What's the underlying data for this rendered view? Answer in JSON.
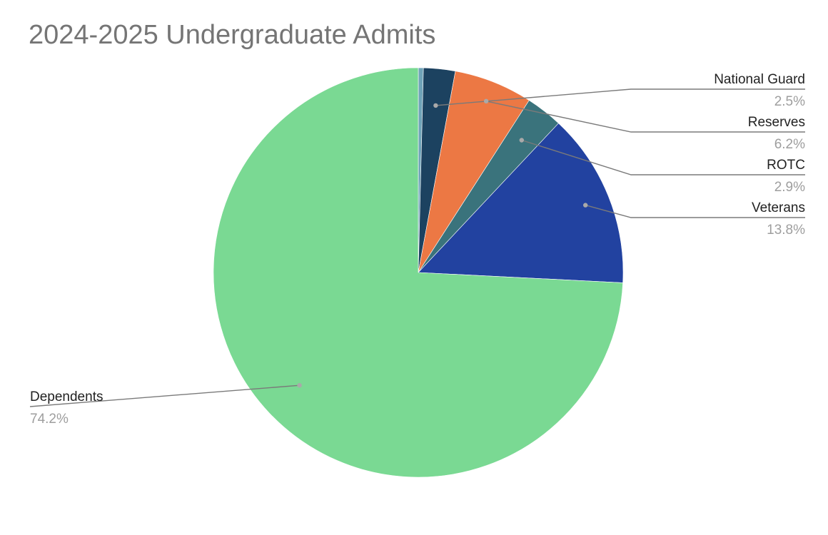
{
  "chart_data": {
    "type": "pie",
    "title": "2024-2025 Undergraduate Admits",
    "slices": [
      {
        "label": "",
        "value": 0.4,
        "percent_label": "",
        "color": "#6fa3b8"
      },
      {
        "label": "National Guard",
        "value": 2.5,
        "percent_label": "2.5%",
        "color": "#1c4260"
      },
      {
        "label": "Reserves",
        "value": 6.2,
        "percent_label": "6.2%",
        "color": "#ec7844"
      },
      {
        "label": "ROTC",
        "value": 2.9,
        "percent_label": "2.9%",
        "color": "#3a737c"
      },
      {
        "label": "Veterans",
        "value": 13.8,
        "percent_label": "13.8%",
        "color": "#2242a0"
      },
      {
        "label": "Dependents",
        "value": 74.2,
        "percent_label": "74.2%",
        "color": "#7ad993"
      }
    ],
    "legend": "none",
    "label_style": "callouts"
  }
}
